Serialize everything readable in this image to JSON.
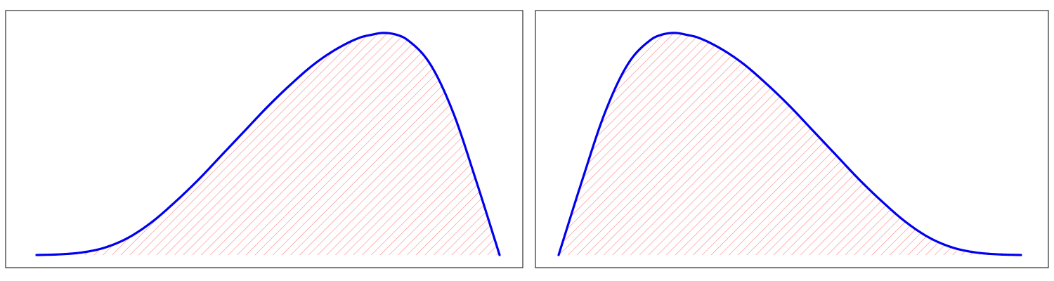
{
  "colors": {
    "curve": "#0000ee",
    "hatch": "#ff7b7b",
    "frame": "#000000",
    "background": "#ffffff"
  },
  "chart_data": [
    {
      "type": "area",
      "title": "",
      "xlabel": "",
      "ylabel": "",
      "grid": false,
      "legend": "none",
      "shading": "hatched",
      "skew": "left",
      "xlim": [
        0,
        1
      ],
      "ylim": [
        0,
        1.05
      ],
      "x": [
        0.0,
        0.05,
        0.1,
        0.15,
        0.2,
        0.25,
        0.3,
        0.35,
        0.4,
        0.45,
        0.5,
        0.55,
        0.6,
        0.65,
        0.7,
        0.72,
        0.75,
        0.78,
        0.8,
        0.85,
        0.9,
        0.95,
        1.0
      ],
      "series": [
        {
          "values": [
            0.0,
            0.003,
            0.012,
            0.035,
            0.08,
            0.15,
            0.24,
            0.34,
            0.45,
            0.56,
            0.67,
            0.77,
            0.86,
            0.93,
            0.98,
            0.99,
            1.0,
            0.99,
            0.97,
            0.86,
            0.64,
            0.33,
            0.0
          ]
        }
      ]
    },
    {
      "type": "area",
      "title": "",
      "xlabel": "",
      "ylabel": "",
      "grid": false,
      "legend": "none",
      "shading": "hatched",
      "skew": "right",
      "xlim": [
        0,
        1
      ],
      "ylim": [
        0,
        1.05
      ],
      "x": [
        0.0,
        0.05,
        0.1,
        0.15,
        0.2,
        0.22,
        0.25,
        0.28,
        0.3,
        0.35,
        0.4,
        0.45,
        0.5,
        0.55,
        0.6,
        0.65,
        0.7,
        0.75,
        0.8,
        0.85,
        0.9,
        0.95,
        1.0
      ],
      "series": [
        {
          "values": [
            0.0,
            0.33,
            0.64,
            0.86,
            0.97,
            0.99,
            1.0,
            0.99,
            0.98,
            0.93,
            0.86,
            0.77,
            0.67,
            0.56,
            0.45,
            0.34,
            0.24,
            0.15,
            0.08,
            0.035,
            0.012,
            0.003,
            0.0
          ]
        }
      ]
    }
  ]
}
